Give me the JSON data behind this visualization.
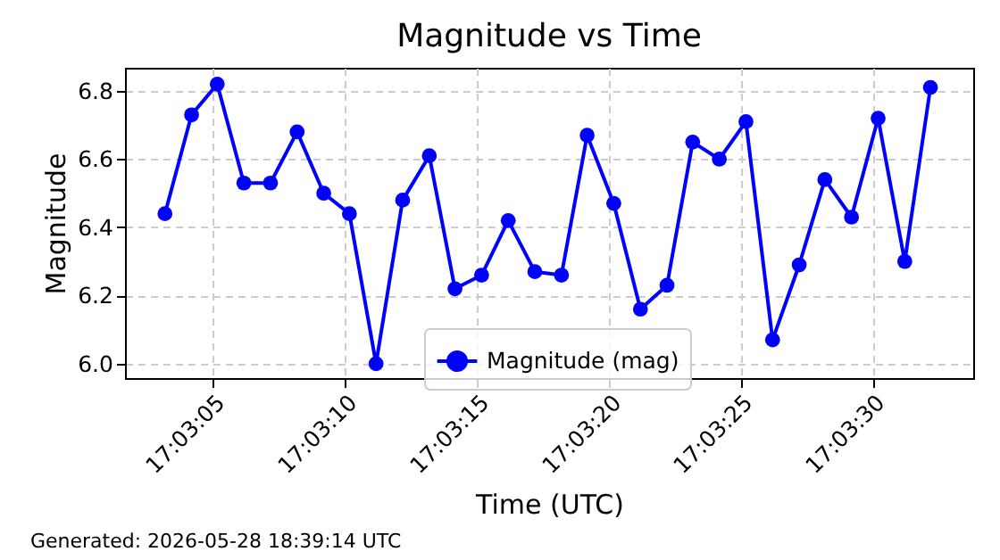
{
  "chart_data": {
    "type": "line",
    "title": "Magnitude vs Time",
    "xlabel": "Time (UTC)",
    "ylabel": "Magnitude",
    "annotations": [
      "Generated: 2026-05-28 18:39:14 UTC"
    ],
    "x": [
      17.05089,
      17.05117,
      17.05144,
      17.05172,
      17.052,
      17.05228,
      17.05256,
      17.05283,
      17.05311,
      17.05339,
      17.05367,
      17.05394,
      17.05422,
      17.0545,
      17.05478,
      17.05506,
      17.05533,
      17.05561,
      17.05589,
      17.05617,
      17.05644,
      17.05672,
      17.057,
      17.05728,
      17.05756,
      17.05783,
      17.05811,
      17.05839,
      17.05867,
      17.05894
    ],
    "series": [
      {
        "name": "Magnitude (mag)",
        "color": "#0000ff",
        "values": [
          6.44,
          6.73,
          6.82,
          6.53,
          6.53,
          6.68,
          6.5,
          6.44,
          6.0,
          6.48,
          6.61,
          6.22,
          6.26,
          6.42,
          6.27,
          6.26,
          6.67,
          6.47,
          6.16,
          6.23,
          6.65,
          6.6,
          6.71,
          6.07,
          6.29,
          6.54,
          6.43,
          6.72,
          6.3,
          6.81
        ]
      }
    ],
    "xlim": [
      17.05047,
      17.05939
    ],
    "xticks": [
      {
        "value": 17.05139,
        "label": "17:03:05"
      },
      {
        "value": 17.05278,
        "label": "17:03:10"
      },
      {
        "value": 17.05417,
        "label": "17:03:15"
      },
      {
        "value": 17.05556,
        "label": "17:03:20"
      },
      {
        "value": 17.05694,
        "label": "17:03:25"
      },
      {
        "value": 17.05833,
        "label": "17:03:30"
      }
    ],
    "ylim": [
      5.958,
      6.868
    ],
    "yticks": [
      {
        "value": 6.0,
        "label": "6.0"
      },
      {
        "value": 6.2,
        "label": "6.2"
      },
      {
        "value": 6.4,
        "label": "6.4"
      },
      {
        "value": 6.6,
        "label": "6.6"
      },
      {
        "value": 6.8,
        "label": "6.8"
      }
    ],
    "grid": true,
    "legend": "bottom",
    "marker": "circle",
    "line_style": "solid"
  }
}
